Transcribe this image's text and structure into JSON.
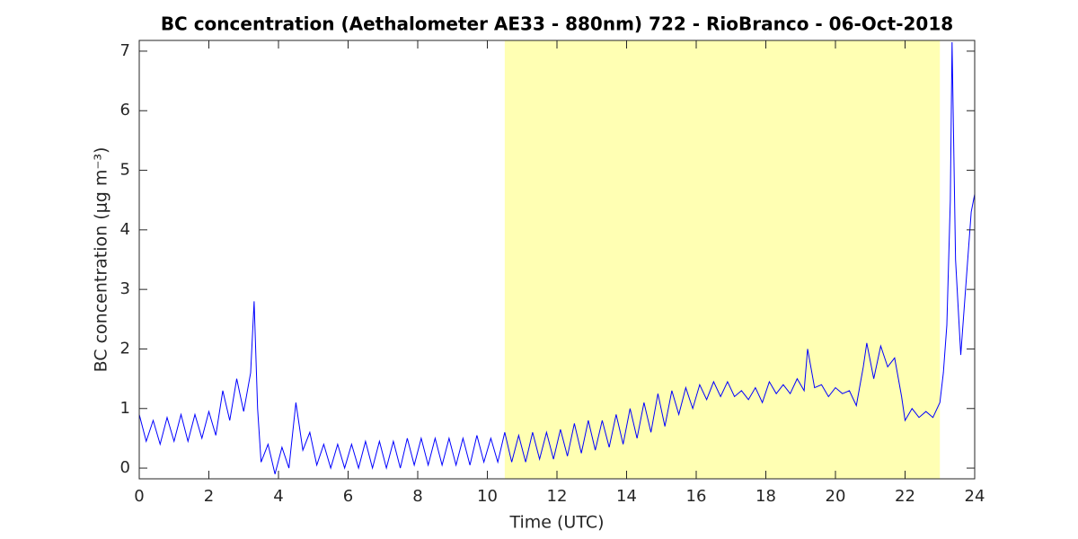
{
  "chart_data": {
    "type": "line",
    "title": "BC concentration (Aethalometer AE33 - 880nm) 722 - RioBranco - 06-Oct-2018",
    "xlabel": "Time (UTC)",
    "ylabel": "BC concentration (μg m⁻³)",
    "highlight": [
      10.5,
      23
    ],
    "highlight_color": "#ffffb3",
    "xlim": [
      0,
      24
    ],
    "xticks": [
      0,
      2,
      4,
      6,
      8,
      10,
      12,
      14,
      16,
      18,
      20,
      22,
      24
    ],
    "ylim": [
      -0.18,
      7.18
    ],
    "yticks": [
      0,
      1,
      2,
      3,
      4,
      5,
      6,
      7
    ],
    "series": [
      {
        "color": "#0000ff",
        "x": [
          0,
          0.2,
          0.4,
          0.6,
          0.8,
          1.0,
          1.2,
          1.4,
          1.6,
          1.8,
          2.0,
          2.2,
          2.4,
          2.6,
          2.8,
          3.0,
          3.2,
          3.3,
          3.4,
          3.5,
          3.7,
          3.9,
          4.1,
          4.3,
          4.5,
          4.7,
          4.9,
          5.1,
          5.3,
          5.5,
          5.7,
          5.9,
          6.1,
          6.3,
          6.5,
          6.7,
          6.9,
          7.1,
          7.3,
          7.5,
          7.7,
          7.9,
          8.1,
          8.3,
          8.5,
          8.7,
          8.9,
          9.1,
          9.3,
          9.5,
          9.7,
          9.9,
          10.1,
          10.3,
          10.5,
          10.7,
          10.9,
          11.1,
          11.3,
          11.5,
          11.7,
          11.9,
          12.1,
          12.3,
          12.5,
          12.7,
          12.9,
          13.1,
          13.3,
          13.5,
          13.7,
          13.9,
          14.1,
          14.3,
          14.5,
          14.7,
          14.9,
          15.1,
          15.3,
          15.5,
          15.7,
          15.9,
          16.1,
          16.3,
          16.5,
          16.7,
          16.9,
          17.1,
          17.3,
          17.5,
          17.7,
          17.9,
          18.1,
          18.3,
          18.5,
          18.7,
          18.9,
          19.1,
          19.2,
          19.4,
          19.6,
          19.8,
          20.0,
          20.2,
          20.4,
          20.6,
          20.8,
          20.9,
          21.1,
          21.3,
          21.5,
          21.7,
          21.9,
          22.0,
          22.2,
          22.4,
          22.6,
          22.8,
          23.0,
          23.1,
          23.2,
          23.3,
          23.35,
          23.45,
          23.6,
          23.8,
          23.9,
          24.0
        ],
        "values": [
          0.9,
          0.45,
          0.8,
          0.4,
          0.85,
          0.45,
          0.9,
          0.45,
          0.9,
          0.5,
          0.95,
          0.55,
          1.3,
          0.8,
          1.5,
          0.95,
          1.6,
          2.8,
          1.0,
          0.1,
          0.4,
          -0.1,
          0.35,
          0.0,
          1.1,
          0.3,
          0.6,
          0.05,
          0.4,
          0.0,
          0.4,
          0.0,
          0.4,
          0.0,
          0.45,
          0.0,
          0.45,
          0.0,
          0.45,
          0.0,
          0.5,
          0.05,
          0.5,
          0.05,
          0.5,
          0.05,
          0.5,
          0.05,
          0.5,
          0.05,
          0.55,
          0.1,
          0.5,
          0.1,
          0.6,
          0.1,
          0.55,
          0.1,
          0.6,
          0.15,
          0.6,
          0.15,
          0.65,
          0.2,
          0.75,
          0.25,
          0.8,
          0.3,
          0.8,
          0.35,
          0.9,
          0.4,
          1.0,
          0.5,
          1.1,
          0.6,
          1.25,
          0.7,
          1.3,
          0.9,
          1.35,
          1.0,
          1.4,
          1.15,
          1.45,
          1.2,
          1.45,
          1.2,
          1.3,
          1.15,
          1.35,
          1.1,
          1.45,
          1.25,
          1.4,
          1.25,
          1.5,
          1.3,
          2.0,
          1.35,
          1.4,
          1.2,
          1.35,
          1.25,
          1.3,
          1.05,
          1.7,
          2.1,
          1.5,
          2.05,
          1.7,
          1.85,
          1.2,
          0.8,
          1.0,
          0.85,
          0.95,
          0.85,
          1.1,
          1.6,
          2.4,
          4.5,
          7.15,
          3.5,
          1.9,
          3.5,
          4.3,
          4.6
        ]
      }
    ]
  }
}
